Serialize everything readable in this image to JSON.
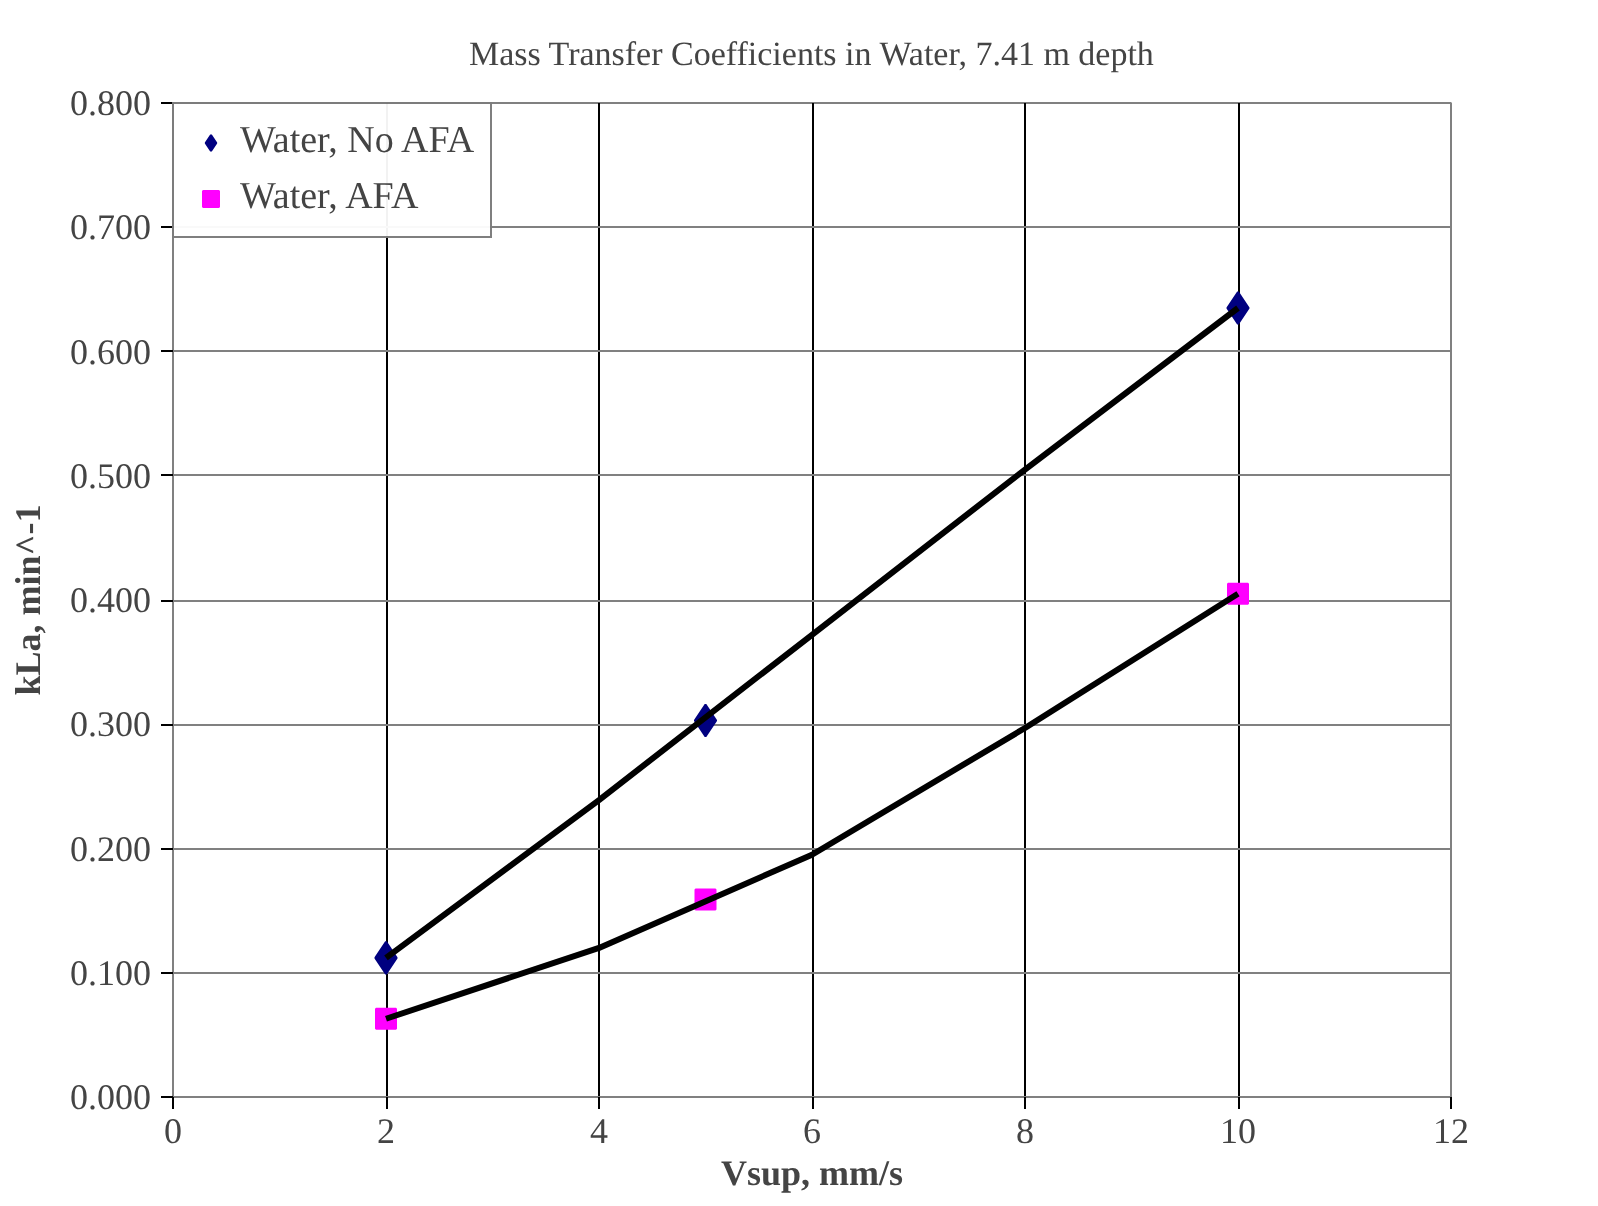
{
  "chart_data": {
    "type": "scatter",
    "title": "Mass Transfer Coefficients in Water, 7.41 m depth",
    "xlabel": "Vsup, mm/s",
    "ylabel": "kLa, min^-1",
    "xlim": [
      0,
      12
    ],
    "xticks": [
      0,
      2,
      4,
      6,
      8,
      10,
      12
    ],
    "ylim": [
      0,
      0.8
    ],
    "yticks": [
      {
        "value": 0,
        "label": "0.000"
      },
      {
        "value": 0.1,
        "label": "0.100"
      },
      {
        "value": 0.2,
        "label": "0.200"
      },
      {
        "value": 0.3,
        "label": "0.300"
      },
      {
        "value": 0.4,
        "label": "0.400"
      },
      {
        "value": 0.5,
        "label": "0.500"
      },
      {
        "value": 0.6,
        "label": "0.600"
      },
      {
        "value": 0.7,
        "label": "0.700"
      },
      {
        "value": 0.8,
        "label": "0.800"
      }
    ],
    "grid": true,
    "legend": "top left",
    "series": [
      {
        "name": "Water, No AFA",
        "color": "#000080",
        "x": [
          2,
          5,
          10
        ],
        "values": [
          0.112,
          0.303,
          0.635
        ],
        "marker": "diamond"
      },
      {
        "name": "Water, AFA",
        "color": "#ff00ff",
        "x": [
          2,
          5,
          10
        ],
        "values": [
          0.063,
          0.159,
          0.405
        ],
        "marker": "square"
      },
      {
        "type": "line",
        "color": "#000000",
        "x": [
          2,
          4,
          6,
          8,
          10
        ],
        "values": [
          0.112,
          0.239,
          0.372,
          0.505,
          0.635
        ],
        "marker": "none"
      },
      {
        "type": "line",
        "color": "#000000",
        "x": [
          2,
          4,
          6,
          8,
          10
        ],
        "values": [
          0.063,
          0.12,
          0.195,
          0.297,
          0.405
        ],
        "marker": "none"
      }
    ]
  }
}
